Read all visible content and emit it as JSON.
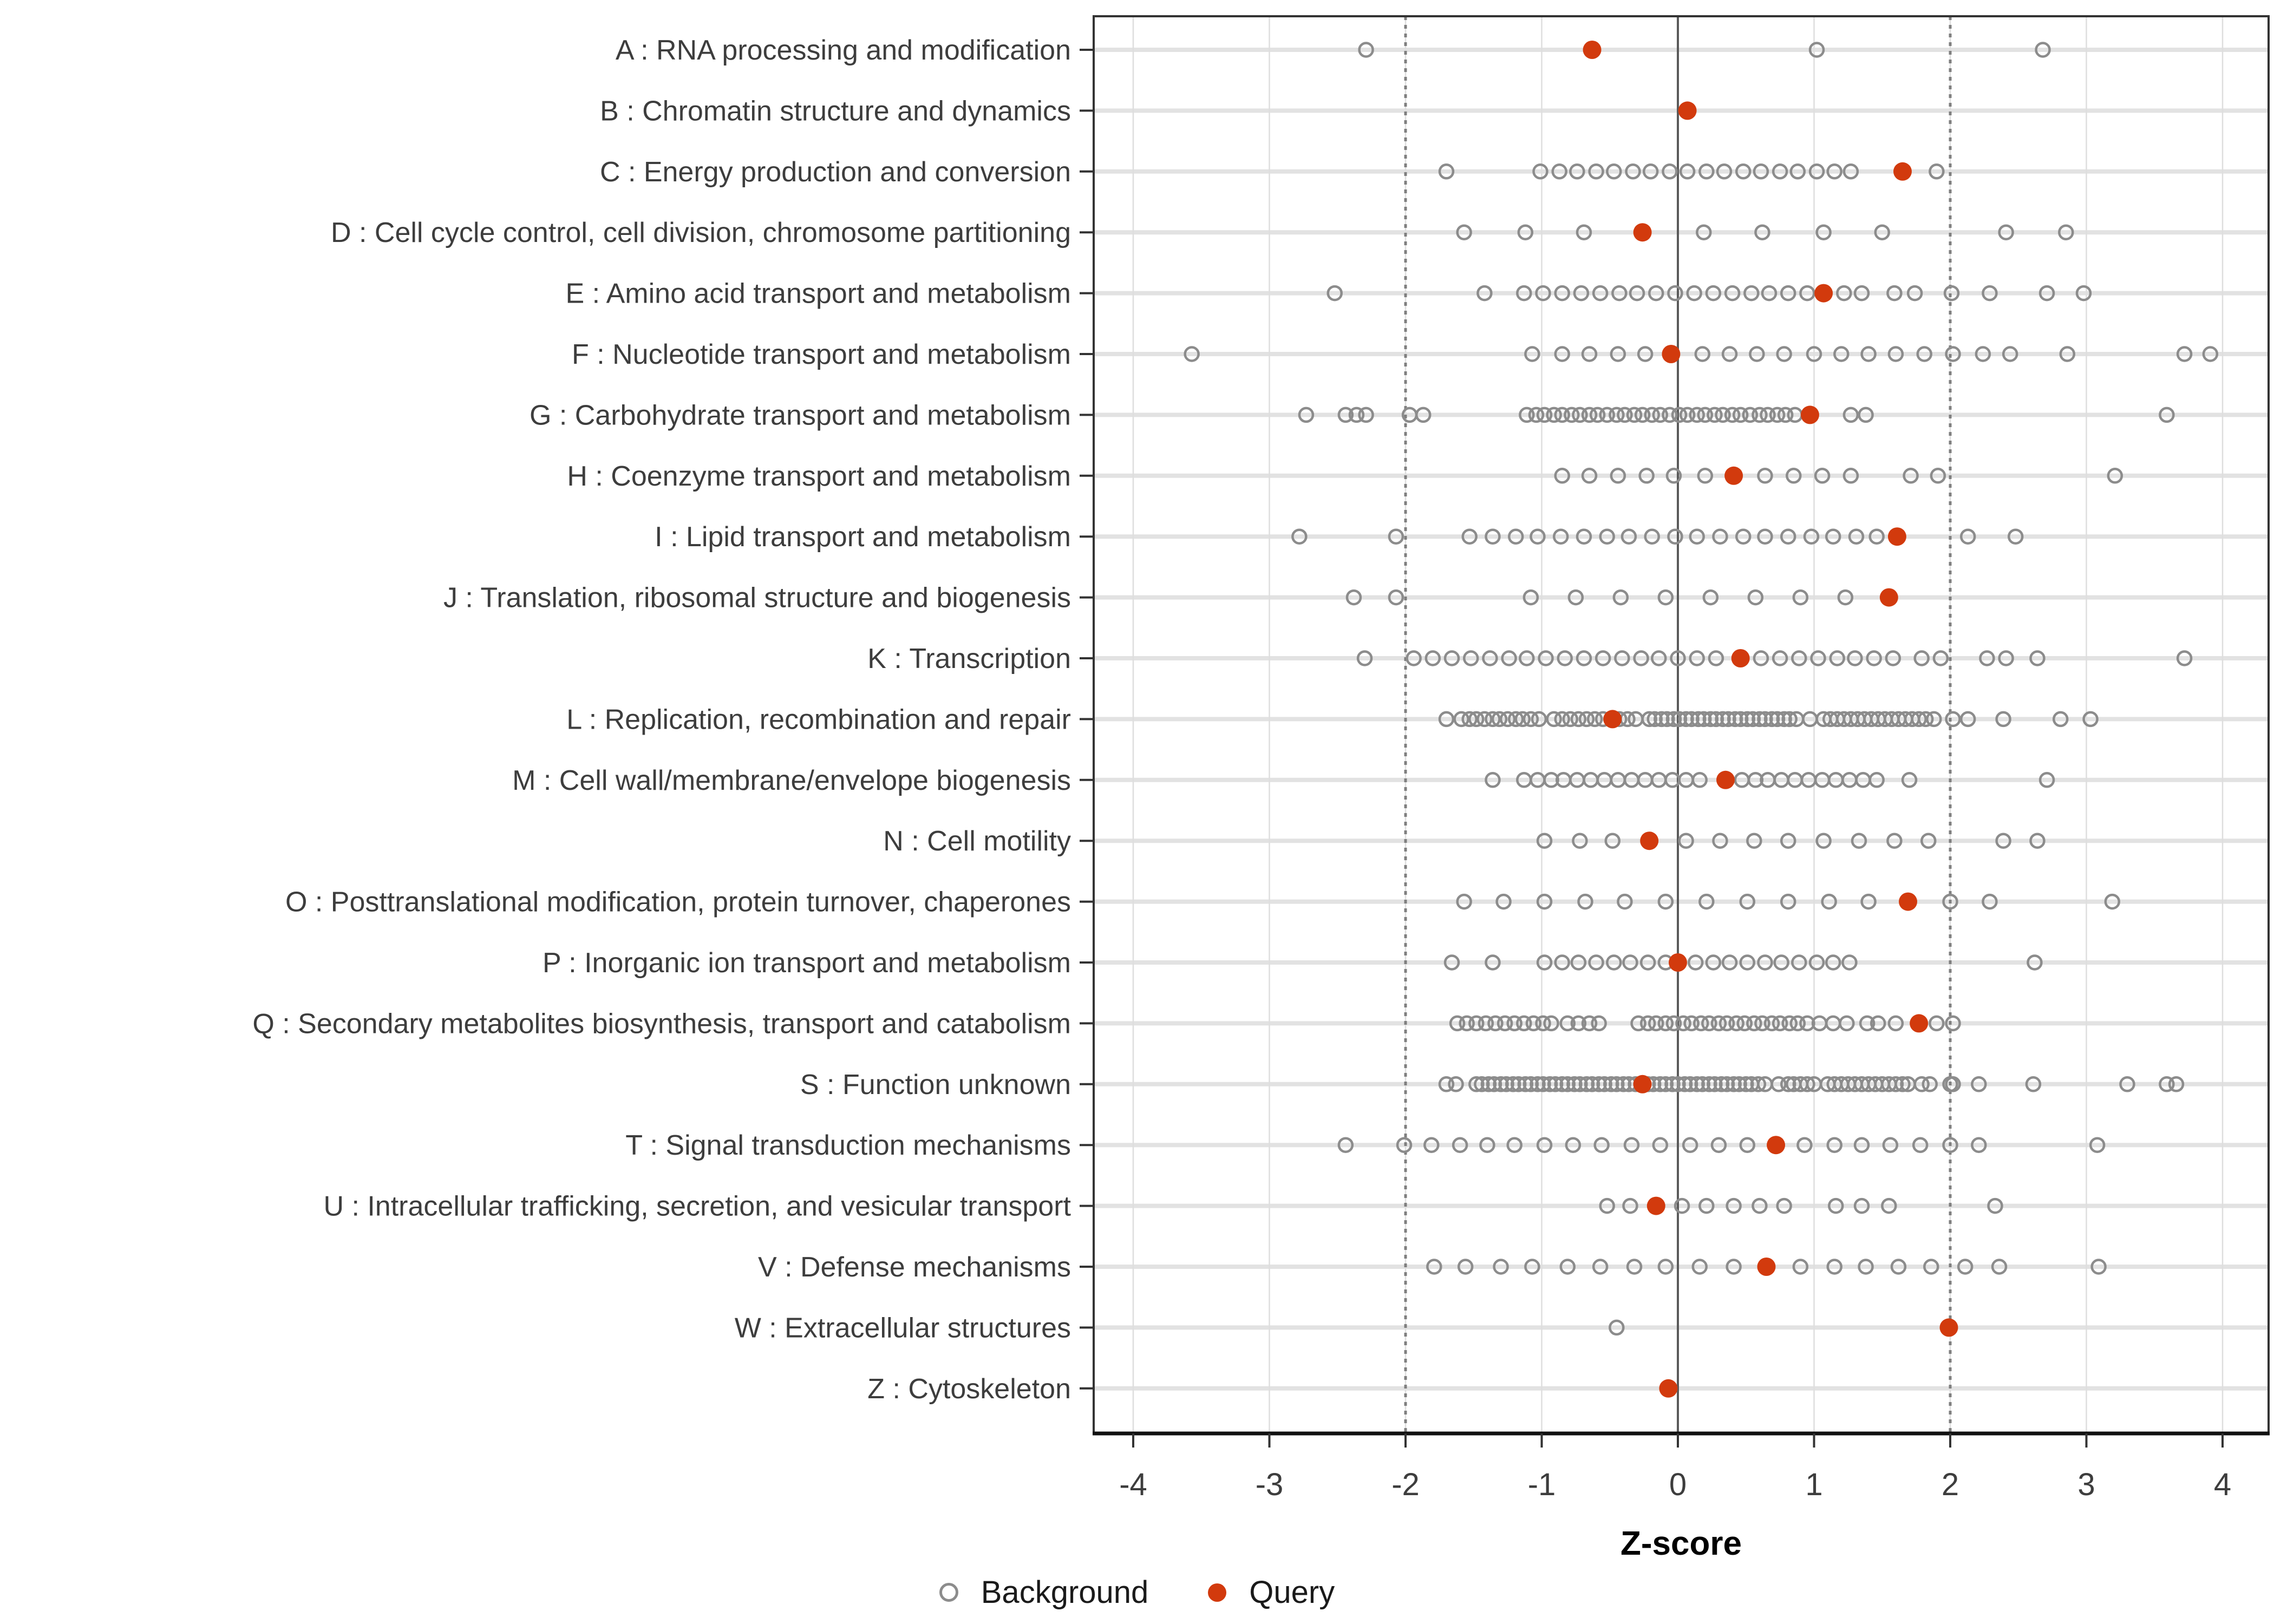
{
  "chart_data": {
    "type": "scatter",
    "title": "",
    "xlabel": "Z-score",
    "ylabel": "",
    "xlim": [
      -4.45,
      4.35
    ],
    "x_ticks": [
      -4,
      -3,
      -2,
      -1,
      0,
      1,
      2,
      3,
      4
    ],
    "reference_lines": {
      "solid": [
        0
      ],
      "dotted": [
        -2,
        2
      ]
    },
    "grid": "on",
    "legend_position": "bottom",
    "legend": {
      "background_label": "Background",
      "query_label": "Query"
    },
    "colors": {
      "query": "#d23a0d",
      "background_stroke": "#8c8c8c",
      "grid_band": "#e2e2e2",
      "grid_vertical": "#dedede",
      "ref_solid": "#5a5a5a",
      "ref_dotted": "#7f7f7f",
      "panel_border": "#333333",
      "axis_text": "#3d3d3d"
    },
    "categories": [
      {
        "code": "A",
        "label": "A : RNA processing and modification",
        "query": -0.63,
        "background": [
          -2.29,
          1.02,
          2.68
        ]
      },
      {
        "code": "B",
        "label": "B : Chromatin structure and dynamics",
        "query": 0.07,
        "background": []
      },
      {
        "code": "C",
        "label": "C : Energy production and conversion",
        "query": 1.65,
        "background": [
          -1.7,
          -1.01,
          -0.87,
          -0.74,
          -0.6,
          -0.47,
          -0.33,
          -0.2,
          -0.06,
          0.07,
          0.21,
          0.34,
          0.48,
          0.61,
          0.75,
          0.88,
          1.02,
          1.15,
          1.27,
          1.9
        ]
      },
      {
        "code": "D",
        "label": "D : Cell cycle control, cell division, chromosome partitioning",
        "query": -0.26,
        "background": [
          -1.57,
          -1.12,
          -0.69,
          0.19,
          0.62,
          1.07,
          1.5,
          2.41,
          2.85
        ]
      },
      {
        "code": "E",
        "label": "E : Amino acid transport and metabolism",
        "query": 1.07,
        "background": [
          -2.52,
          -1.42,
          -1.13,
          -0.99,
          -0.85,
          -0.71,
          -0.57,
          -0.43,
          -0.3,
          -0.16,
          -0.02,
          0.12,
          0.26,
          0.4,
          0.54,
          0.67,
          0.81,
          0.95,
          1.22,
          1.35,
          1.59,
          1.74,
          2.01,
          2.29,
          2.71,
          2.98
        ]
      },
      {
        "code": "F",
        "label": "F : Nucleotide transport and metabolism",
        "query": -0.05,
        "background": [
          -3.57,
          -1.07,
          -0.85,
          -0.65,
          -0.44,
          -0.24,
          0.18,
          0.38,
          0.58,
          0.78,
          1.0,
          1.2,
          1.4,
          1.6,
          1.81,
          2.02,
          2.24,
          2.44,
          2.86,
          3.72,
          3.91
        ]
      },
      {
        "code": "G",
        "label": "G : Carbohydrate transport and metabolism",
        "query": 0.97,
        "background": [
          -2.73,
          -2.44,
          -2.36,
          -2.29,
          -1.97,
          -1.87,
          -1.11,
          -1.04,
          -0.98,
          -0.91,
          -0.85,
          -0.78,
          -0.72,
          -0.65,
          -0.59,
          -0.52,
          -0.45,
          -0.39,
          -0.32,
          -0.26,
          -0.19,
          -0.13,
          -0.06,
          0.01,
          0.07,
          0.14,
          0.2,
          0.27,
          0.33,
          0.4,
          0.46,
          0.53,
          0.6,
          0.66,
          0.73,
          0.79,
          0.86,
          1.27,
          1.38,
          3.59
        ]
      },
      {
        "code": "H",
        "label": "H : Coenzyme transport and metabolism",
        "query": 0.41,
        "background": [
          -0.85,
          -0.65,
          -0.44,
          -0.23,
          -0.03,
          0.2,
          0.64,
          0.85,
          1.06,
          1.27,
          1.71,
          1.91,
          3.21
        ]
      },
      {
        "code": "I",
        "label": "I : Lipid transport and metabolism",
        "query": 1.61,
        "background": [
          -2.78,
          -2.07,
          -1.53,
          -1.36,
          -1.19,
          -1.03,
          -0.86,
          -0.69,
          -0.52,
          -0.36,
          -0.19,
          -0.02,
          0.14,
          0.31,
          0.48,
          0.64,
          0.81,
          0.98,
          1.14,
          1.31,
          1.46,
          2.13,
          2.48
        ]
      },
      {
        "code": "J",
        "label": "J : Translation, ribosomal structure and biogenesis",
        "query": 1.55,
        "background": [
          -2.38,
          -2.07,
          -1.08,
          -0.75,
          -0.42,
          -0.09,
          0.24,
          0.57,
          0.9,
          1.23
        ]
      },
      {
        "code": "K",
        "label": "K : Transcription",
        "query": 0.46,
        "background": [
          -2.3,
          -1.94,
          -1.8,
          -1.66,
          -1.52,
          -1.38,
          -1.24,
          -1.11,
          -0.97,
          -0.83,
          -0.69,
          -0.55,
          -0.41,
          -0.27,
          -0.14,
          0.0,
          0.14,
          0.28,
          0.61,
          0.75,
          0.89,
          1.03,
          1.17,
          1.3,
          1.44,
          1.58,
          1.79,
          1.93,
          2.27,
          2.41,
          2.64,
          3.72
        ]
      },
      {
        "code": "L",
        "label": "L : Replication, recombination and repair",
        "query": -0.48,
        "background": [
          -1.7,
          -1.59,
          -1.53,
          -1.48,
          -1.42,
          -1.36,
          -1.31,
          -1.25,
          -1.19,
          -1.14,
          -1.08,
          -1.02,
          -0.91,
          -0.85,
          -0.79,
          -0.73,
          -0.67,
          -0.61,
          -0.55,
          -0.49,
          -0.43,
          -0.37,
          -0.31,
          -0.21,
          -0.17,
          -0.12,
          -0.08,
          -0.03,
          0.01,
          0.06,
          0.1,
          0.15,
          0.19,
          0.24,
          0.28,
          0.33,
          0.37,
          0.42,
          0.46,
          0.51,
          0.55,
          0.6,
          0.64,
          0.69,
          0.73,
          0.78,
          0.82,
          0.87,
          0.97,
          1.07,
          1.12,
          1.17,
          1.22,
          1.27,
          1.32,
          1.37,
          1.42,
          1.47,
          1.52,
          1.57,
          1.62,
          1.67,
          1.72,
          1.77,
          1.82,
          1.88,
          2.02,
          2.13,
          2.39,
          2.81,
          3.03
        ]
      },
      {
        "code": "M",
        "label": "M : Cell wall/membrane/envelope biogenesis",
        "query": 0.35,
        "background": [
          -1.36,
          -1.13,
          -1.03,
          -0.93,
          -0.84,
          -0.74,
          -0.64,
          -0.54,
          -0.44,
          -0.34,
          -0.24,
          -0.14,
          -0.04,
          0.06,
          0.16,
          0.47,
          0.57,
          0.66,
          0.76,
          0.86,
          0.96,
          1.06,
          1.16,
          1.26,
          1.36,
          1.46,
          1.7,
          2.71
        ]
      },
      {
        "code": "N",
        "label": "N : Cell motility",
        "query": -0.21,
        "background": [
          -0.98,
          -0.72,
          -0.48,
          0.06,
          0.31,
          0.56,
          0.81,
          1.07,
          1.33,
          1.59,
          1.84,
          2.39,
          2.64
        ]
      },
      {
        "code": "O",
        "label": "O : Posttranslational modification, protein turnover, chaperones",
        "query": 1.69,
        "background": [
          -1.57,
          -1.28,
          -0.98,
          -0.68,
          -0.39,
          -0.09,
          0.21,
          0.51,
          0.81,
          1.11,
          1.4,
          2.0,
          2.29,
          3.19
        ]
      },
      {
        "code": "P",
        "label": "P : Inorganic ion transport and metabolism",
        "query": 0.0,
        "background": [
          -1.66,
          -1.36,
          -0.98,
          -0.85,
          -0.73,
          -0.6,
          -0.47,
          -0.35,
          -0.22,
          -0.09,
          0.13,
          0.26,
          0.38,
          0.51,
          0.64,
          0.76,
          0.89,
          1.02,
          1.14,
          1.26,
          2.62
        ]
      },
      {
        "code": "Q",
        "label": "Q : Secondary metabolites biosynthesis, transport and catabolism",
        "query": 1.77,
        "background": [
          -1.62,
          -1.55,
          -1.48,
          -1.41,
          -1.34,
          -1.27,
          -1.2,
          -1.13,
          -1.06,
          -0.99,
          -0.93,
          -0.81,
          -0.73,
          -0.65,
          -0.58,
          -0.29,
          -0.22,
          -0.16,
          -0.09,
          -0.03,
          0.04,
          0.1,
          0.17,
          0.23,
          0.3,
          0.36,
          0.43,
          0.49,
          0.56,
          0.62,
          0.69,
          0.75,
          0.82,
          0.88,
          0.95,
          1.04,
          1.14,
          1.24,
          1.39,
          1.47,
          1.6,
          1.9,
          2.02
        ]
      },
      {
        "code": "S",
        "label": "S : Function unknown",
        "query": -0.26,
        "background": [
          -1.7,
          -1.63,
          -1.48,
          -1.44,
          -1.39,
          -1.35,
          -1.3,
          -1.26,
          -1.21,
          -1.17,
          -1.12,
          -1.08,
          -1.03,
          -0.99,
          -0.94,
          -0.9,
          -0.85,
          -0.81,
          -0.76,
          -0.72,
          -0.67,
          -0.63,
          -0.58,
          -0.54,
          -0.49,
          -0.45,
          -0.4,
          -0.36,
          -0.31,
          -0.27,
          -0.22,
          -0.18,
          -0.13,
          -0.09,
          -0.04,
          0.0,
          0.05,
          0.09,
          0.14,
          0.18,
          0.23,
          0.27,
          0.32,
          0.36,
          0.41,
          0.45,
          0.5,
          0.54,
          0.59,
          0.64,
          0.74,
          0.81,
          0.85,
          0.9,
          0.95,
          1.0,
          1.1,
          1.15,
          1.2,
          1.25,
          1.3,
          1.35,
          1.4,
          1.45,
          1.5,
          1.55,
          1.6,
          1.65,
          1.69,
          1.79,
          1.85,
          2.0,
          2.02,
          2.21,
          2.61,
          3.3,
          3.59,
          3.66
        ]
      },
      {
        "code": "T",
        "label": "T : Signal transduction mechanisms",
        "query": 0.72,
        "background": [
          -2.44,
          -2.01,
          -1.81,
          -1.6,
          -1.4,
          -1.2,
          -0.98,
          -0.77,
          -0.56,
          -0.34,
          -0.13,
          0.09,
          0.3,
          0.51,
          0.93,
          1.15,
          1.35,
          1.56,
          1.78,
          2.0,
          2.21,
          3.08
        ]
      },
      {
        "code": "U",
        "label": "U : Intracellular trafficking, secretion, and vesicular transport",
        "query": -0.16,
        "background": [
          -0.52,
          -0.35,
          0.03,
          0.21,
          0.41,
          0.6,
          0.78,
          1.16,
          1.35,
          1.55,
          2.33
        ]
      },
      {
        "code": "V",
        "label": "V : Defense mechanisms",
        "query": 0.65,
        "background": [
          -1.79,
          -1.56,
          -1.3,
          -1.07,
          -0.81,
          -0.57,
          -0.32,
          -0.09,
          0.16,
          0.41,
          0.9,
          1.15,
          1.38,
          1.62,
          1.86,
          2.11,
          2.36,
          3.09
        ]
      },
      {
        "code": "W",
        "label": "W : Extracellular structures",
        "query": 1.99,
        "background": [
          -0.45
        ]
      },
      {
        "code": "Z",
        "label": "Z : Cytoskeleton",
        "query": -0.07,
        "background": []
      }
    ]
  }
}
